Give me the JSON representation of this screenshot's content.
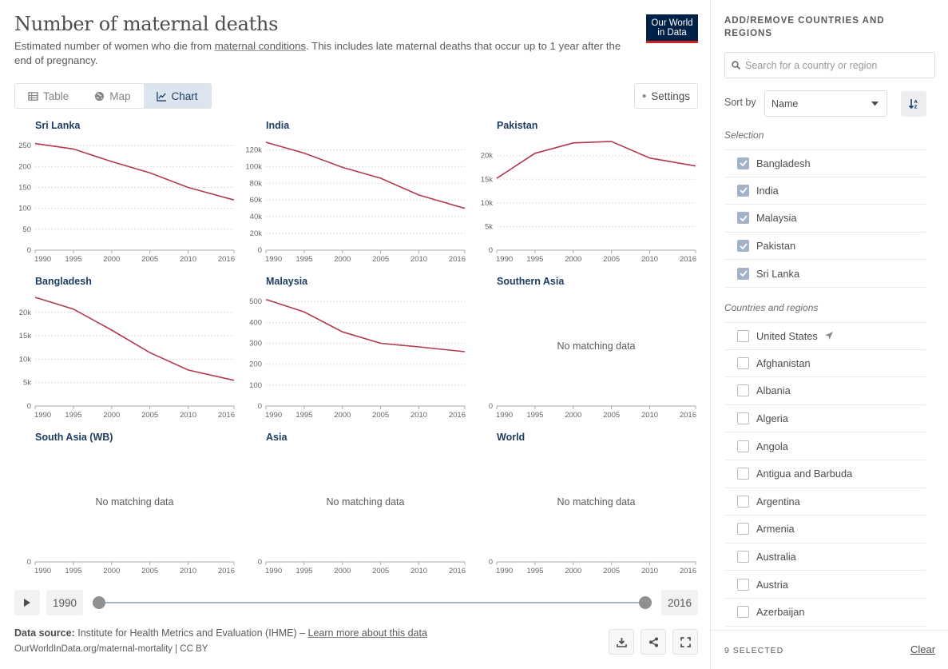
{
  "header": {
    "title": "Number of maternal deaths",
    "subtitle_pre": "Estimated number of women who die from ",
    "subtitle_link": "maternal conditions",
    "subtitle_post": ". This includes late maternal deaths that occur up to 1 year after the end of pregnancy.",
    "logo_line1": "Our World",
    "logo_line2": "in Data"
  },
  "tabs": [
    {
      "label": "Table",
      "icon": "table-icon"
    },
    {
      "label": "Map",
      "icon": "globe-icon"
    },
    {
      "label": "Chart",
      "icon": "line-chart-icon",
      "active": true
    }
  ],
  "settings_label": "Settings",
  "no_data_label": "No matching data",
  "chart_data": {
    "type": "line",
    "layout": "small-multiples",
    "x_ticks": [
      1990,
      1995,
      2000,
      2005,
      2010,
      2016
    ],
    "xlim": [
      1990,
      2016
    ],
    "line_color": "#b13a4f",
    "panels": [
      {
        "name": "Sri Lanka",
        "x": [
          1990,
          1995,
          2000,
          2005,
          2010,
          2016
        ],
        "y": [
          255,
          242,
          212,
          185,
          150,
          120
        ],
        "ylim": [
          0,
          260
        ],
        "y_ticks": [
          0,
          50,
          100,
          150,
          200,
          250
        ],
        "y_tick_labels": [
          "0",
          "50",
          "100",
          "150",
          "200",
          "250"
        ]
      },
      {
        "name": "India",
        "x": [
          1990,
          1995,
          2000,
          2005,
          2010,
          2016
        ],
        "y": [
          129000,
          116000,
          99000,
          86000,
          66000,
          50000
        ],
        "ylim": [
          0,
          130000
        ],
        "y_ticks": [
          0,
          20000,
          40000,
          60000,
          80000,
          100000,
          120000
        ],
        "y_tick_labels": [
          "0",
          "20k",
          "40k",
          "60k",
          "80k",
          "100k",
          "120k"
        ]
      },
      {
        "name": "Pakistan",
        "x": [
          1990,
          1995,
          2000,
          2005,
          2010,
          2016
        ],
        "y": [
          15200,
          20500,
          22700,
          23000,
          19500,
          17800
        ],
        "ylim": [
          0,
          23000
        ],
        "y_ticks": [
          0,
          5000,
          10000,
          15000,
          20000
        ],
        "y_tick_labels": [
          "0",
          "5k",
          "10k",
          "15k",
          "20k"
        ]
      },
      {
        "name": "Bangladesh",
        "x": [
          1990,
          1995,
          2000,
          2005,
          2010,
          2016
        ],
        "y": [
          23200,
          20700,
          16200,
          11400,
          7700,
          5500
        ],
        "ylim": [
          0,
          23200
        ],
        "y_ticks": [
          0,
          5000,
          10000,
          15000,
          20000
        ],
        "y_tick_labels": [
          "0",
          "5k",
          "10k",
          "15k",
          "20k"
        ]
      },
      {
        "name": "Malaysia",
        "x": [
          1990,
          1995,
          2000,
          2005,
          2010,
          2016
        ],
        "y": [
          510,
          450,
          355,
          300,
          283,
          260
        ],
        "ylim": [
          0,
          520
        ],
        "y_ticks": [
          0,
          100,
          200,
          300,
          400,
          500
        ],
        "y_tick_labels": [
          "0",
          "100",
          "200",
          "300",
          "400",
          "500"
        ]
      },
      {
        "name": "Southern Asia",
        "x": [],
        "y": [],
        "ylim": [
          0,
          1
        ],
        "y_ticks": [
          0
        ],
        "y_tick_labels": [
          "0"
        ],
        "no_data": true
      },
      {
        "name": "South Asia (WB)",
        "x": [],
        "y": [],
        "ylim": [
          0,
          1
        ],
        "y_ticks": [
          0
        ],
        "y_tick_labels": [
          "0"
        ],
        "no_data": true
      },
      {
        "name": "Asia",
        "x": [],
        "y": [],
        "ylim": [
          0,
          1
        ],
        "y_ticks": [
          0
        ],
        "y_tick_labels": [
          "0"
        ],
        "no_data": true
      },
      {
        "name": "World",
        "x": [],
        "y": [],
        "ylim": [
          0,
          1
        ],
        "y_ticks": [
          0
        ],
        "y_tick_labels": [
          "0"
        ],
        "no_data": true
      }
    ]
  },
  "timeline": {
    "start_year": "1990",
    "end_year": "2016",
    "start_value": 1990,
    "end_value": 2016
  },
  "footer": {
    "source_label": "Data source:",
    "source_text": "Institute for Health Metrics and Evaluation (IHME) – ",
    "learn_more": "Learn more about this data",
    "url": "OurWorldInData.org/maternal-mortality | CC BY"
  },
  "sidebar": {
    "title": "ADD/REMOVE COUNTRIES AND REGIONS",
    "search_placeholder": "Search for a country or region",
    "sort_by_label": "Sort by",
    "sort_value": "Name",
    "selection_label": "Selection",
    "selection": [
      "Bangladesh",
      "India",
      "Malaysia",
      "Pakistan",
      "Sri Lanka"
    ],
    "countries_label": "Countries and regions",
    "countries": [
      "United States",
      "Afghanistan",
      "Albania",
      "Algeria",
      "Angola",
      "Antigua and Barbuda",
      "Argentina",
      "Armenia",
      "Australia",
      "Austria",
      "Azerbaijan"
    ],
    "selected_count": "9 SELECTED",
    "clear_label": "Clear"
  }
}
